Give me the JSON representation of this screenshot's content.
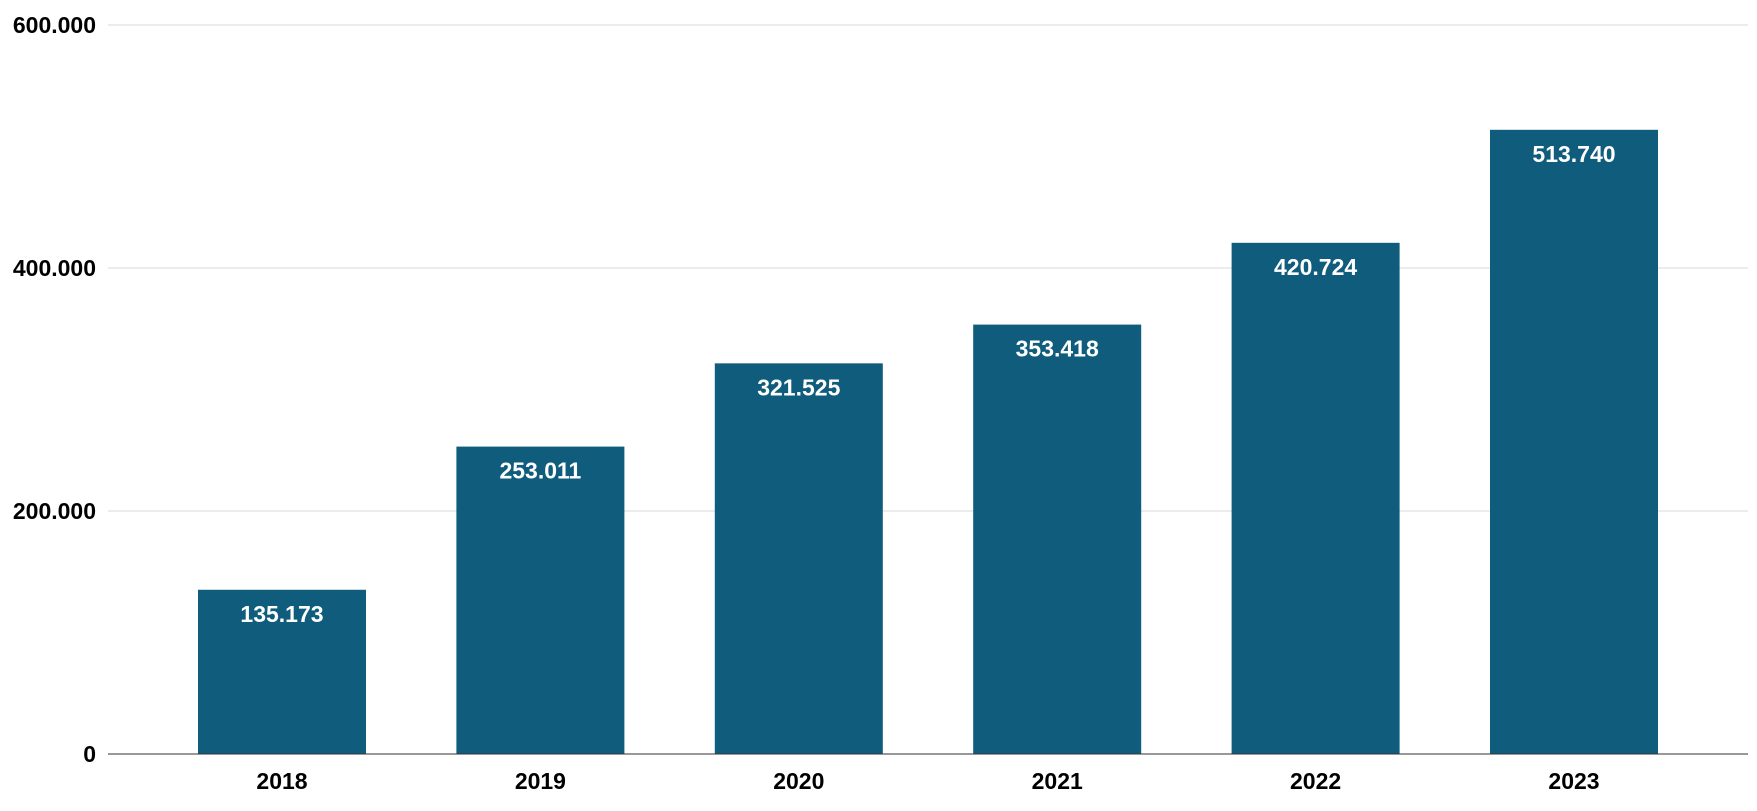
{
  "chart_data": {
    "type": "bar",
    "title": "",
    "xlabel": "",
    "ylabel": "",
    "categories": [
      "2018",
      "2019",
      "2020",
      "2021",
      "2022",
      "2023"
    ],
    "values": [
      135173,
      253011,
      321525,
      353418,
      420724,
      513740
    ],
    "value_labels": [
      "135.173",
      "253.011",
      "321.525",
      "353.418",
      "420.724",
      "513.740"
    ],
    "ylim": [
      0,
      600000
    ],
    "y_ticks": [
      0,
      200000,
      400000,
      600000
    ],
    "y_tick_labels": [
      "0",
      "200.000",
      "400.000",
      "600.000"
    ],
    "grid": true,
    "legend": "none",
    "bar_color": "#0f5c7d"
  }
}
